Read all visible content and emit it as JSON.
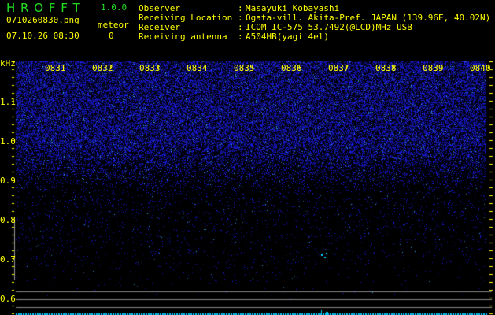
{
  "app": {
    "name": "H R O F F T",
    "version": "1.0.0"
  },
  "file": {
    "filename": "0710260830.png",
    "datetime": "07.10.26 08:30"
  },
  "meteor": {
    "label": "meteor",
    "count": "0"
  },
  "info": [
    {
      "key": "Observer",
      "value": "Masayuki Kobayashi"
    },
    {
      "key": "Receiving Location",
      "value": "Ogata-vill. Akita-Pref. JAPAN (139.96E, 40.02N)"
    },
    {
      "key": "Receiver",
      "value": "ICOM IC-575 53.7492(@LCD)MHz USB"
    },
    {
      "key": "Receiving antenna",
      "value": "A504HB(yagi 4el)"
    }
  ],
  "spectrogram": {
    "y_unit": "kHz",
    "time_labels": [
      "0831",
      "0832",
      "0833",
      "0834",
      "0835",
      "0836",
      "0837",
      "0838",
      "0839",
      "0840"
    ],
    "freq_labels": [
      "1.1",
      "1.0",
      "0.9",
      "0.8",
      "0.7",
      "0.6"
    ],
    "colors": {
      "noise": "#2020ff",
      "echo": "#00ccff",
      "labels": "#ffff00",
      "title": "#22dd22",
      "lines": "#888888"
    }
  }
}
